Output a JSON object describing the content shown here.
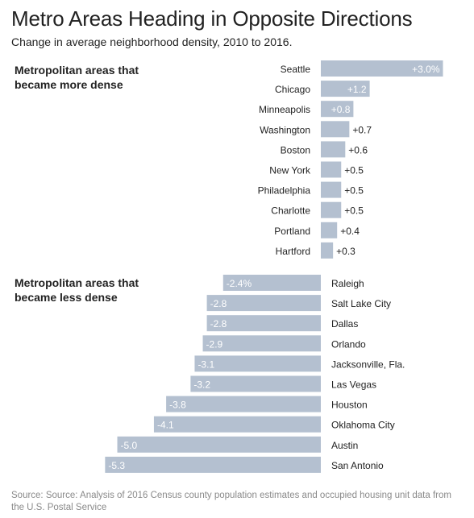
{
  "header": {
    "title": "Metro Areas Heading in Opposite Directions",
    "subtitle": "Change in average neighborhood density, 2010 to 2016."
  },
  "groups": {
    "more_dense_label": "Metropolitan areas that\nbecame more dense",
    "less_dense_label": "Metropolitan areas that\nbecame less dense"
  },
  "source": "Source: Source: Analysis of 2016 Census county population estimates and occupied housing unit data from the U.S. Postal Service",
  "colors": {
    "bar": "#b4c0d0",
    "text": "#222222",
    "source": "#8a8a8a"
  },
  "chart_data": [
    {
      "type": "bar",
      "orientation": "horizontal",
      "group": "more dense",
      "categories": [
        "Seattle",
        "Chicago",
        "Minneapolis",
        "Washington",
        "Boston",
        "New York",
        "Philadelphia",
        "Charlotte",
        "Portland",
        "Hartford"
      ],
      "values": [
        3.0,
        1.2,
        0.8,
        0.7,
        0.6,
        0.5,
        0.5,
        0.5,
        0.4,
        0.3
      ],
      "labels": [
        "+3.0%",
        "+1.2",
        "+0.8",
        "+0.7",
        "+0.6",
        "+0.5",
        "+0.5",
        "+0.5",
        "+0.4",
        "+0.3"
      ],
      "unit": "%"
    },
    {
      "type": "bar",
      "orientation": "horizontal",
      "group": "less dense",
      "categories": [
        "Raleigh",
        "Salt Lake City",
        "Dallas",
        "Orlando",
        "Jacksonville, Fla.",
        "Las Vegas",
        "Houston",
        "Oklahoma City",
        "Austin",
        "San Antonio"
      ],
      "values": [
        -2.4,
        -2.8,
        -2.8,
        -2.9,
        -3.1,
        -3.2,
        -3.8,
        -4.1,
        -5.0,
        -5.3
      ],
      "labels": [
        "-2.4%",
        "-2.8",
        "-2.8",
        "-2.9",
        "-3.1",
        "-3.2",
        "-3.8",
        "-4.1",
        "-5.0",
        "-5.3"
      ],
      "unit": "%"
    }
  ]
}
